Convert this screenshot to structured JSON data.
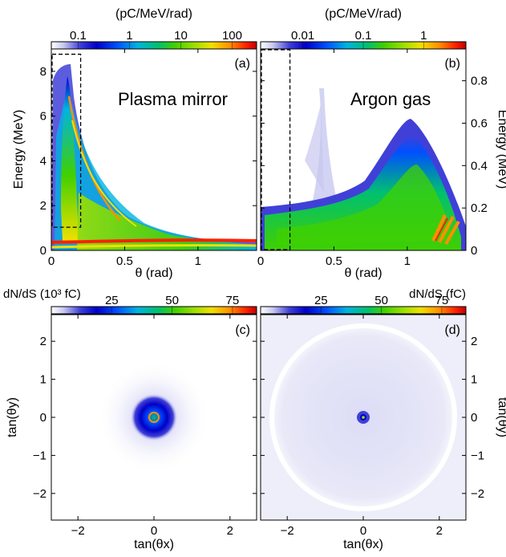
{
  "colors": {
    "colormap": [
      "#ffffff",
      "#c8c8f0",
      "#4040d8",
      "#0000c8",
      "#0050ff",
      "#00b4e0",
      "#00c070",
      "#40d000",
      "#a0e000",
      "#f0e000",
      "#ff9000",
      "#ff2000",
      "#c00000"
    ]
  },
  "colorbars": {
    "a": {
      "title": "(pC/MeV/rad)",
      "ticks": [
        "0.1",
        "1",
        "10",
        "100"
      ]
    },
    "b": {
      "title": "(pC/MeV/rad)",
      "ticks": [
        "0.01",
        "0.1",
        "1"
      ]
    },
    "c": {
      "title": "dN/dS (10³ fC)",
      "ticks": [
        "25",
        "50",
        "75"
      ]
    },
    "d": {
      "title": "dN/dS (fC)",
      "ticks": [
        "25",
        "50",
        "75"
      ]
    }
  },
  "panels": {
    "a": {
      "label": "(a)",
      "annotation": "Plasma mirror"
    },
    "b": {
      "label": "(b)",
      "annotation": "Argon gas"
    },
    "c": {
      "label": "(c)"
    },
    "d": {
      "label": "(d)"
    }
  },
  "chart_data": [
    {
      "type": "heatmap",
      "panel": "a",
      "xlabel": "θ (rad)",
      "ylabel": "Energy (MeV)",
      "xlim": [
        0,
        1.4
      ],
      "ylim": [
        0,
        9
      ],
      "xticks": [
        0,
        0.5,
        1
      ],
      "yticks": [
        0,
        2,
        4,
        6,
        8
      ],
      "colorbar_range": [
        0.03,
        300
      ],
      "colorbar_scale": "log",
      "dashed_box": {
        "theta": [
          0,
          0.2
        ],
        "energy": [
          1,
          8.8
        ]
      }
    },
    {
      "type": "heatmap",
      "panel": "b",
      "xlabel": "θ (rad)",
      "ylabel": "Energy (MeV)",
      "xlim": [
        0,
        1.4
      ],
      "ylim": [
        0,
        0.95
      ],
      "xticks": [
        0,
        0.5,
        1
      ],
      "yticks": [
        0,
        0.2,
        0.4,
        0.6,
        0.8
      ],
      "colorbar_range": [
        0.002,
        5
      ],
      "colorbar_scale": "log",
      "dashed_box": {
        "theta": [
          0,
          0.2
        ],
        "energy": [
          0,
          0.95
        ]
      }
    },
    {
      "type": "heatmap",
      "panel": "c",
      "xlabel": "tan(θx)",
      "ylabel": "tan(θy)",
      "xlim": [
        -2.7,
        2.7
      ],
      "ylim": [
        -2.7,
        2.7
      ],
      "xticks": [
        -2,
        0,
        2
      ],
      "yticks": [
        -2,
        -1,
        0,
        1,
        2
      ],
      "colorbar_range": [
        0,
        85
      ],
      "colorbar_scale": "linear"
    },
    {
      "type": "heatmap",
      "panel": "d",
      "xlabel": "tan(θx)",
      "ylabel": "tan(θy)",
      "xlim": [
        -2.7,
        2.7
      ],
      "ylim": [
        -2.7,
        2.7
      ],
      "xticks": [
        -2,
        0,
        2
      ],
      "yticks": [
        -2,
        -1,
        0,
        1,
        2
      ],
      "colorbar_range": [
        0,
        85
      ],
      "colorbar_scale": "linear"
    }
  ]
}
